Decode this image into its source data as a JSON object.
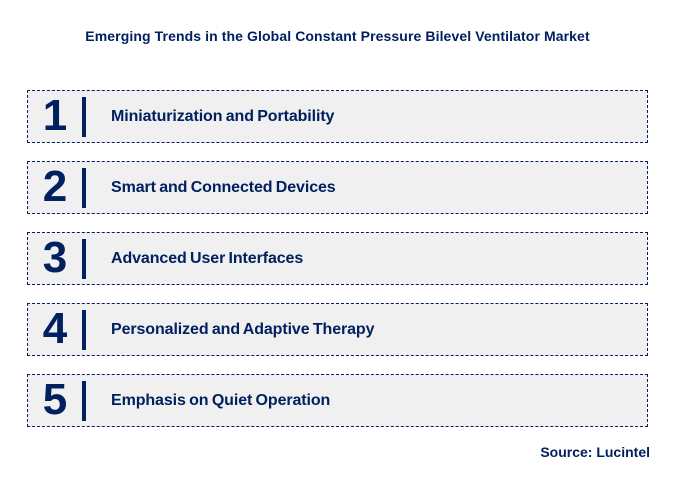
{
  "title": "Emerging Trends in the Global Constant Pressure Bilevel Ventilator Market",
  "source": "Source: Lucintel",
  "colors": {
    "navy": "#002060",
    "box_bg": "#F0F0F0",
    "page_bg": "#FFFFFF"
  },
  "trends": [
    {
      "number": "1",
      "label": "Miniaturization and Portability"
    },
    {
      "number": "2",
      "label": "Smart and Connected Devices"
    },
    {
      "number": "3",
      "label": "Advanced User Interfaces"
    },
    {
      "number": "4",
      "label": "Personalized and Adaptive Therapy"
    },
    {
      "number": "5",
      "label": "Emphasis on Quiet Operation"
    }
  ]
}
